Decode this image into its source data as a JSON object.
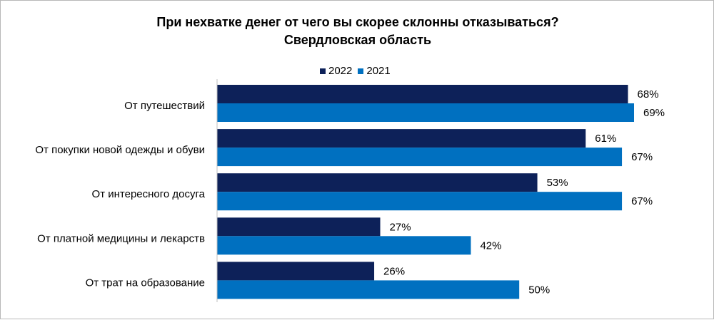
{
  "chart_data": {
    "type": "bar",
    "orientation": "horizontal",
    "title": "При нехватке денег от чего вы скорее склонны отказываться?",
    "subtitle": "Свердловская область",
    "categories": [
      "От путешествий",
      "От покупки новой одежды и обуви",
      "От интересного досуга",
      "От платной медицины и лекарств",
      "От трат на образование"
    ],
    "series": [
      {
        "name": "2022",
        "values": [
          68,
          61,
          53,
          27,
          26
        ],
        "color": "#0d2159"
      },
      {
        "name": "2021",
        "values": [
          69,
          67,
          67,
          42,
          50
        ],
        "color": "#0070c0"
      }
    ],
    "value_suffix": "%",
    "xlim": [
      0,
      100
    ],
    "legend_position": "top",
    "grid": false
  }
}
